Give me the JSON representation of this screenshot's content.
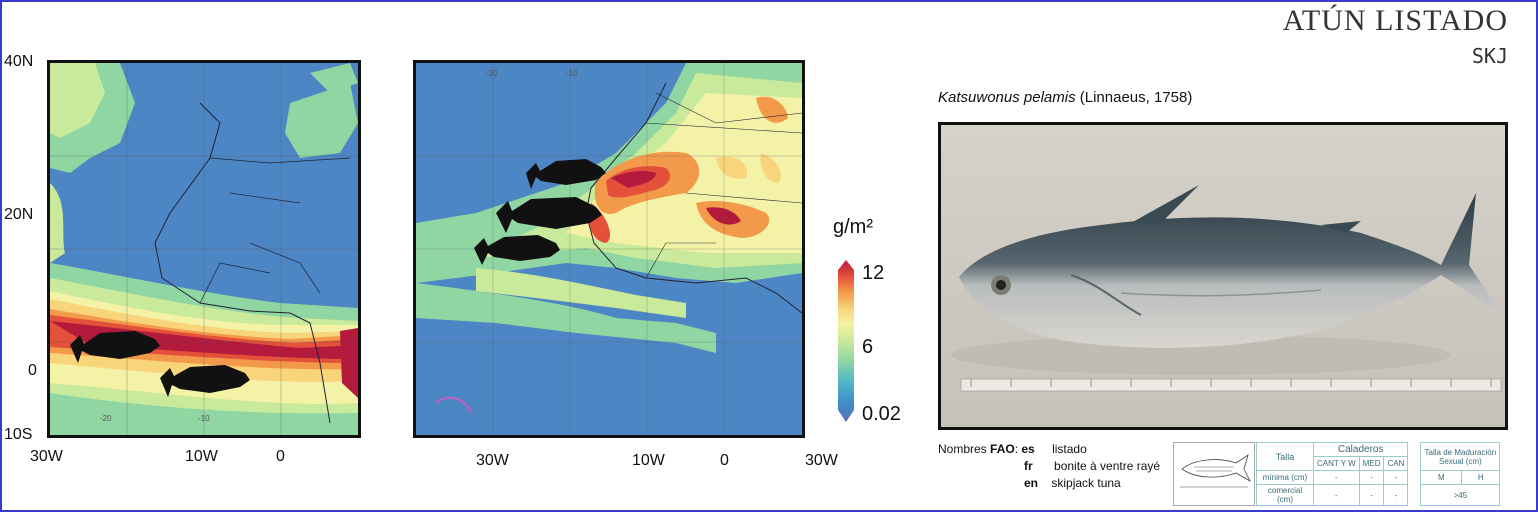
{
  "header": {
    "title": "ATÚN LISTADO",
    "code": "SKJ"
  },
  "species": {
    "scientific": "Katsuwonus pelamis",
    "author": "(Linnaeus, 1758)"
  },
  "map1": {
    "lat_labels": [
      "40N",
      "20N",
      "0",
      "10S"
    ],
    "lon_labels": [
      "30W",
      "10W",
      "0"
    ],
    "inner_ticks": [
      "-20",
      "-10"
    ]
  },
  "map2": {
    "lon_labels": [
      "30W",
      "10W",
      "0",
      "30W"
    ],
    "inner_ticks": [
      "-20",
      "-10"
    ]
  },
  "legend": {
    "unit": "g/m²",
    "max": "12",
    "mid": "6",
    "min": "0.02",
    "colors": [
      "#5a6fb0",
      "#3f8fc7",
      "#4fb8c8",
      "#8fd6a3",
      "#c9ea9a",
      "#f4f2a6",
      "#f8d47a",
      "#f29a4a",
      "#e5503a",
      "#b31a3c"
    ]
  },
  "names": {
    "label": "Nombres",
    "fao": "FAO",
    "rows": [
      {
        "code": "es",
        "name": "listado"
      },
      {
        "code": "fr",
        "name": "bonite à ventre rayé"
      },
      {
        "code": "en",
        "name": "skipjack tuna"
      }
    ]
  },
  "table": {
    "talla": "Talla",
    "caladeros": "Caladeros",
    "maduracion": "Talla de Maduración Sexual (cm)",
    "cols": [
      "CANT Y W",
      "MED",
      "CAN"
    ],
    "sex_cols": [
      "M",
      "H"
    ],
    "rows": [
      {
        "label": "mínima (cm)",
        "values": [
          "-",
          "-",
          "-"
        ]
      },
      {
        "label": "comercial (cm)",
        "values": [
          "-",
          "-",
          "-"
        ]
      }
    ],
    "maturity": ">45"
  }
}
